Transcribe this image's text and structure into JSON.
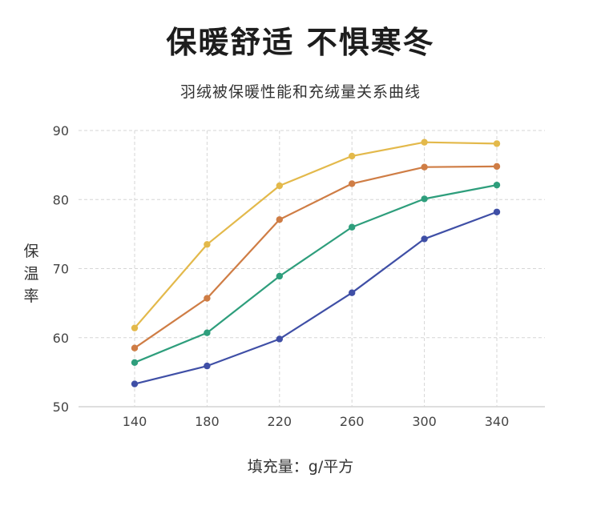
{
  "chart_data": {
    "type": "line",
    "title": "保暖舒适 不惧寒冬",
    "subtitle": "羽绒被保暖性能和充绒量关系曲线",
    "xlabel": "填充量：g/平方",
    "ylabel": "保温率",
    "x": [
      140,
      180,
      220,
      260,
      300,
      340
    ],
    "x_ticks": [
      "140",
      "180",
      "220",
      "260",
      "300",
      "340"
    ],
    "y_ticks": [
      "50",
      "60",
      "70",
      "80",
      "90"
    ],
    "ylim": [
      50,
      90
    ],
    "grid": true,
    "series": [
      {
        "color": "#e3b94b",
        "values": [
          61.4,
          73.5,
          82.0,
          86.3,
          88.3,
          88.1
        ]
      },
      {
        "color": "#cf7d45",
        "values": [
          58.5,
          65.7,
          77.1,
          82.3,
          84.7,
          84.8
        ]
      },
      {
        "color": "#2e9e7c",
        "values": [
          56.4,
          60.7,
          68.9,
          76.0,
          80.1,
          82.1
        ]
      },
      {
        "color": "#3f4fa6",
        "values": [
          53.3,
          55.9,
          59.8,
          66.5,
          74.3,
          78.2
        ]
      }
    ]
  }
}
